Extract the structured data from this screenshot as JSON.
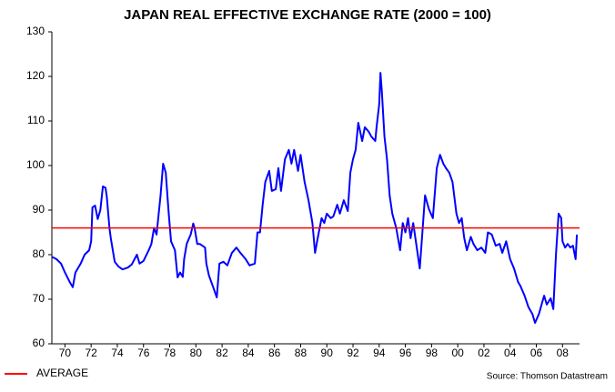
{
  "chart_data": {
    "type": "line",
    "title": "JAPAN REAL EFFECTIVE EXCHANGE RATE (2000 = 100)",
    "source": "Source: Thomson Datastream",
    "average": {
      "label": "AVERAGE",
      "value": 86,
      "color": "#ff0000"
    },
    "x": [
      1969.0,
      1969.35,
      1969.7,
      1970.0,
      1970.4,
      1970.6,
      1970.8,
      1971.2,
      1971.5,
      1971.85,
      1972.0,
      1972.1,
      1972.3,
      1972.5,
      1972.7,
      1972.9,
      1973.1,
      1973.2,
      1973.4,
      1973.5,
      1973.8,
      1974.1,
      1974.4,
      1974.8,
      1975.1,
      1975.5,
      1975.7,
      1976.0,
      1976.4,
      1976.6,
      1976.8,
      1977.0,
      1977.3,
      1977.5,
      1977.7,
      1977.9,
      1978.1,
      1978.4,
      1978.6,
      1978.8,
      1979.0,
      1979.1,
      1979.3,
      1979.6,
      1979.8,
      1979.9,
      1980.1,
      1980.3,
      1980.7,
      1980.8,
      1981.0,
      1981.3,
      1981.6,
      1981.8,
      1982.1,
      1982.4,
      1982.75,
      1983.1,
      1983.4,
      1983.8,
      1984.1,
      1984.5,
      1984.7,
      1984.9,
      1985.1,
      1985.3,
      1985.6,
      1985.8,
      1986.1,
      1986.3,
      1986.5,
      1986.8,
      1987.1,
      1987.3,
      1987.5,
      1987.8,
      1988.0,
      1988.3,
      1988.6,
      1988.9,
      1989.1,
      1989.3,
      1989.6,
      1989.8,
      1990.0,
      1990.3,
      1990.5,
      1990.8,
      1991.0,
      1991.3,
      1991.6,
      1991.8,
      1992.0,
      1992.2,
      1992.4,
      1992.7,
      1992.9,
      1993.2,
      1993.4,
      1993.7,
      1993.8,
      1994.0,
      1994.1,
      1994.2,
      1994.4,
      1994.6,
      1994.8,
      1995.0,
      1995.3,
      1995.6,
      1995.8,
      1996.0,
      1996.2,
      1996.4,
      1996.6,
      1996.8,
      1997.1,
      1997.3,
      1997.5,
      1997.8,
      1998.1,
      1998.4,
      1998.65,
      1998.9,
      1999.1,
      1999.35,
      1999.6,
      1999.9,
      2000.1,
      2000.3,
      2000.5,
      2000.7,
      2001.0,
      2001.2,
      2001.5,
      2001.8,
      2002.1,
      2002.3,
      2002.6,
      2002.9,
      2003.2,
      2003.4,
      2003.7,
      2004.0,
      2004.3,
      2004.6,
      2004.8,
      2005.1,
      2005.4,
      2005.7,
      2005.9,
      2006.2,
      2006.4,
      2006.6,
      2006.8,
      2007.1,
      2007.3,
      2007.5,
      2007.7,
      2007.9,
      2008.0,
      2008.2,
      2008.4,
      2008.6,
      2008.8,
      2009.0,
      2009.1
    ],
    "series": [
      {
        "color": "#0000ff",
        "values": [
          79.5,
          79,
          78,
          76,
          73.7,
          72.7,
          76,
          78,
          80,
          81,
          83,
          90.6,
          91,
          88,
          90,
          95.3,
          95,
          93,
          86,
          83.7,
          78.4,
          77.3,
          76.7,
          77.1,
          77.8,
          80,
          78,
          78.6,
          81,
          82.4,
          86,
          84.5,
          93.3,
          100.4,
          98.4,
          90.2,
          83,
          81,
          74.9,
          76,
          75,
          79,
          82.4,
          84.5,
          87,
          86,
          82.4,
          82.4,
          81.6,
          78,
          75.3,
          72.9,
          70.4,
          78,
          78.4,
          77.6,
          80.4,
          81.6,
          80.4,
          79,
          77.6,
          78,
          85,
          85,
          91.2,
          96.3,
          98.8,
          94.3,
          94.7,
          99.4,
          94.3,
          101.4,
          103.5,
          100.4,
          103.5,
          98.8,
          102.4,
          96.3,
          92.2,
          87.1,
          80.4,
          83.7,
          88.2,
          87.1,
          89.2,
          88.2,
          88.6,
          91.2,
          89.2,
          92.2,
          89.8,
          98.4,
          101.4,
          103.5,
          109.6,
          105.5,
          108.6,
          107.6,
          106.5,
          105.5,
          108.6,
          113.7,
          120.8,
          116.7,
          106.5,
          101.4,
          93.3,
          89.2,
          86,
          81,
          87.1,
          85,
          88.2,
          83.7,
          87.1,
          83,
          76.9,
          85,
          93.3,
          90.2,
          88.2,
          99.4,
          102.4,
          100.4,
          99.4,
          98.4,
          96.3,
          89.2,
          87.1,
          88.2,
          83.7,
          81,
          84,
          82.4,
          81,
          81.6,
          80.4,
          85,
          84.5,
          82,
          82.4,
          80.4,
          83,
          79,
          76.9,
          73.9,
          72.9,
          70.8,
          68.2,
          66.7,
          64.7,
          66.7,
          68.8,
          70.8,
          68.8,
          70.2,
          67.8,
          80,
          89.2,
          88.2,
          83,
          81.6,
          82.4,
          81.6,
          82,
          79,
          84.5
        ]
      }
    ],
    "xlim": [
      1969.0,
      2009.3
    ],
    "xticks": [
      {
        "value": 1970,
        "label": "70"
      },
      {
        "value": 1972,
        "label": "72"
      },
      {
        "value": 1974,
        "label": "74"
      },
      {
        "value": 1976,
        "label": "76"
      },
      {
        "value": 1978,
        "label": "78"
      },
      {
        "value": 1980,
        "label": "80"
      },
      {
        "value": 1982,
        "label": "82"
      },
      {
        "value": 1984,
        "label": "84"
      },
      {
        "value": 1986,
        "label": "86"
      },
      {
        "value": 1988,
        "label": "88"
      },
      {
        "value": 1990,
        "label": "90"
      },
      {
        "value": 1992,
        "label": "92"
      },
      {
        "value": 1994,
        "label": "94"
      },
      {
        "value": 1996,
        "label": "96"
      },
      {
        "value": 1998,
        "label": "98"
      },
      {
        "value": 2000,
        "label": "00"
      },
      {
        "value": 2002,
        "label": "02"
      },
      {
        "value": 2004,
        "label": "04"
      },
      {
        "value": 2006,
        "label": "06"
      },
      {
        "value": 2008,
        "label": "08"
      }
    ],
    "ylim": [
      60,
      130
    ],
    "yticks": [
      60,
      70,
      80,
      90,
      100,
      110,
      120,
      130
    ],
    "grid": false
  }
}
